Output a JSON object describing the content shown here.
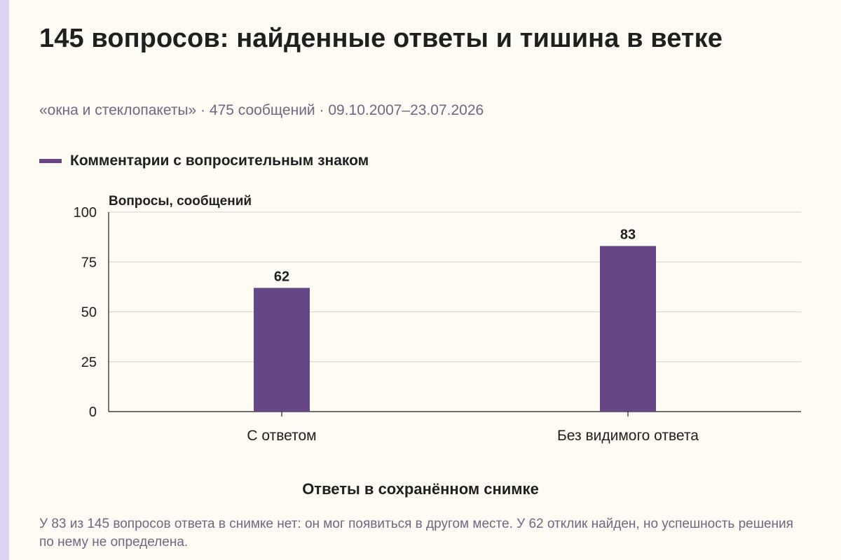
{
  "page": {
    "title": "145 вопросов: найденные ответы и тишина в ветке",
    "subtitle": "«окна и стеклопакеты» · 475 сообщений · 09.10.2007–23.07.2026",
    "footnote": "У 83 из 145 вопросов ответа в снимке нет: он мог появиться в другом месте. У 62 отклик найден, но успешность решения по нему не определена."
  },
  "colors": {
    "accent_strip": "#ddd2ef",
    "bar": "#654785",
    "grid": "#d5d2d0",
    "axis": "#1f1f1f",
    "background": "#fdfbf3"
  },
  "chart_data": {
    "type": "bar",
    "title": "Ответы в сохранённом снимке",
    "ylabel": "Вопросы, сообщений",
    "xlabel": "",
    "categories": [
      "С ответом",
      "Без видимого ответа"
    ],
    "series": [
      {
        "name": "Комментарии с вопросительным знаком",
        "values": [
          62,
          83
        ]
      }
    ],
    "ylim": [
      0,
      100
    ],
    "yticks": [
      0,
      25,
      50,
      75,
      100
    ],
    "grid": true,
    "data_labels": true,
    "legend": "top-left"
  }
}
